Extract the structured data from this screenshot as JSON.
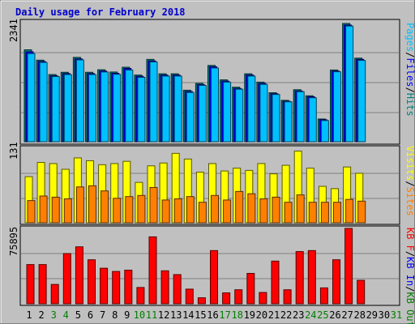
{
  "chart_data": {
    "type": "bar",
    "title": "Daily usage for February 2018",
    "days": [
      "1",
      "2",
      "3",
      "4",
      "5",
      "6",
      "7",
      "8",
      "9",
      "10",
      "11",
      "12",
      "13",
      "14",
      "15",
      "16",
      "17",
      "18",
      "19",
      "20",
      "21",
      "22",
      "23",
      "24",
      "25",
      "26",
      "27",
      "28",
      "29",
      "30",
      "31"
    ],
    "weekend_days": [
      "3",
      "4",
      "10",
      "11",
      "17",
      "18",
      "24",
      "25",
      "31"
    ],
    "panels": [
      {
        "id": "top",
        "ymax_label": "2341",
        "ymax": 2341,
        "side_label": [
          "Pages",
          "Files",
          "Hits"
        ],
        "side_colors": [
          "#00c0ff",
          "#0000ff",
          "#008080"
        ],
        "series": [
          {
            "name": "Hits",
            "color": "#008080",
            "values": [
              1820,
              1615,
              1330,
              1375,
              1670,
              1375,
              1425,
              1380,
              1475,
              1320,
              1630,
              1345,
              1345,
              1020,
              1155,
              1510,
              1225,
              1080,
              1345,
              1180,
              970,
              820,
              1030,
              910,
              450,
              1420,
              2341,
              1655,
              0,
              0,
              0
            ]
          },
          {
            "name": "Files",
            "color": "#0000ff",
            "values": [
              1780,
              1590,
              1305,
              1350,
              1640,
              1350,
              1400,
              1355,
              1450,
              1295,
              1600,
              1320,
              1320,
              995,
              1130,
              1485,
              1200,
              1055,
              1320,
              1155,
              950,
              800,
              1005,
              890,
              435,
              1400,
              2310,
              1630,
              0,
              0,
              0
            ]
          },
          {
            "name": "Pages",
            "color": "#00c0ff",
            "values": [
              1745,
              1570,
              1290,
              1330,
              1620,
              1330,
              1380,
              1335,
              1420,
              1275,
              1580,
              1300,
              1300,
              975,
              1115,
              1460,
              1180,
              1040,
              1300,
              1135,
              935,
              790,
              990,
              870,
              420,
              1385,
              2290,
              1610,
              0,
              0,
              0
            ]
          }
        ]
      },
      {
        "id": "middle",
        "ymax_label": "131",
        "ymax": 131,
        "side_label": [
          "Visits",
          "Sites"
        ],
        "side_colors": [
          "#ffff00",
          "#ff8000"
        ],
        "series": [
          {
            "name": "Visits",
            "color": "#ffff00",
            "values": [
              81,
              106,
              104,
              94,
              114,
              109,
              102,
              104,
              108,
              71,
              100,
              105,
              122,
              112,
              89,
              104,
              91,
              96,
              92,
              104,
              86,
              101,
              126,
              96,
              64,
              60,
              98,
              87,
              0,
              0,
              0
            ]
          },
          {
            "name": "Sites",
            "color": "#ff8000",
            "values": [
              39,
              47,
              45,
              42,
              63,
              65,
              56,
              43,
              46,
              48,
              62,
              40,
              42,
              46,
              36,
              48,
              40,
              55,
              51,
              42,
              45,
              36,
              49,
              36,
              36,
              36,
              41,
              38,
              0,
              0,
              0
            ]
          }
        ]
      },
      {
        "id": "bottom",
        "ymax_label": "75895",
        "ymax": 75895,
        "side_label": [
          "KB F",
          "KB In",
          "KB Out"
        ],
        "side_colors": [
          "#ff0000",
          "#0000ff",
          "#008000"
        ],
        "series": [
          {
            "name": "KB F",
            "color": "#ff0000",
            "values": [
              39480,
              39480,
              19460,
              50540,
              57370,
              44310,
              35800,
              32520,
              33830,
              16390,
              67390,
              33190,
              29360,
              14740,
              6020,
              53580,
              10960,
              14090,
              30580,
              11360,
              42970,
              14090,
              52570,
              53580,
              15990,
              44310,
              75895,
              23620,
              0,
              0,
              0
            ]
          }
        ]
      }
    ]
  }
}
